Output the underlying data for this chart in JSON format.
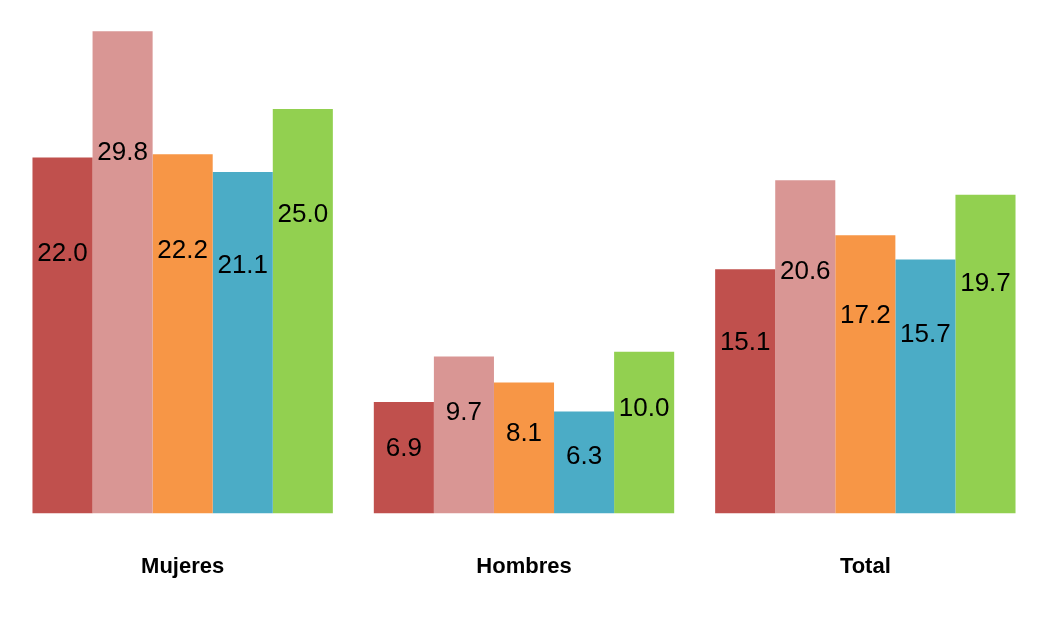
{
  "chart_data": {
    "type": "bar",
    "categories": [
      "Mujeres",
      "Hombres",
      "Total"
    ],
    "series": [
      {
        "color": "#c0504d",
        "values": [
          22.0,
          6.9,
          15.1
        ],
        "value_labels": [
          "22.0",
          "6.9",
          "15.1"
        ]
      },
      {
        "color": "#d99694",
        "values": [
          29.8,
          9.7,
          20.6
        ],
        "value_labels": [
          "29.8",
          "9.7",
          "20.6"
        ]
      },
      {
        "color": "#f79646",
        "values": [
          22.2,
          8.1,
          17.2
        ],
        "value_labels": [
          "22.2",
          "8.1",
          "17.2"
        ]
      },
      {
        "color": "#4bacc6",
        "values": [
          21.1,
          6.3,
          15.7
        ],
        "value_labels": [
          "21.1",
          "6.3",
          "15.7"
        ]
      },
      {
        "color": "#92d050",
        "values": [
          25.0,
          10.0,
          19.7
        ],
        "value_labels": [
          "25.0",
          "10.0",
          "19.7"
        ]
      }
    ],
    "grid": false,
    "legend": false
  }
}
